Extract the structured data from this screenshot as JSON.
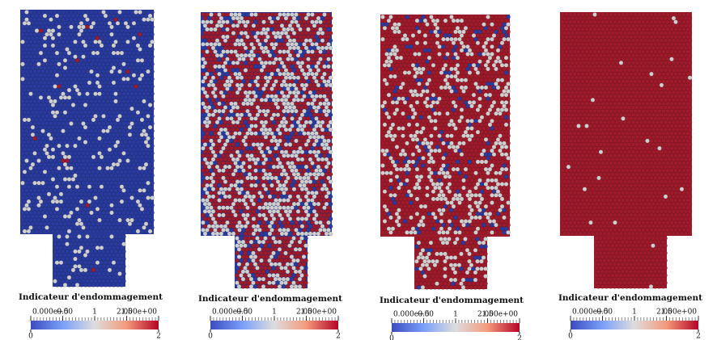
{
  "panels": [
    {
      "colorbar": {
        "title": "Indicateur d'endommagement",
        "ticks": [
          {
            "value": 0,
            "label": "0.000e+00"
          },
          0.5,
          1,
          1.5,
          {
            "value": 2,
            "label": "2.000e+00"
          }
        ],
        "min": 0,
        "max": 2
      }
    },
    {
      "colorbar": {
        "title": "Indicateur d'endommagement",
        "ticks": [
          {
            "value": 0,
            "label": "0.000e+00"
          },
          0.5,
          1,
          1.5,
          {
            "value": 2,
            "label": "2.000e+00"
          }
        ],
        "min": 0,
        "max": 2
      }
    },
    {
      "colorbar": {
        "title": "Indicateur d'endommagement",
        "ticks": [
          {
            "value": 0,
            "label": "0.000e+00"
          },
          0.5,
          1,
          1.5,
          {
            "value": 2,
            "label": "2.000e+00"
          }
        ],
        "min": 0,
        "max": 2
      }
    },
    {
      "colorbar": {
        "title": "Indicateur d'endommagement",
        "ticks": [
          {
            "value": 0,
            "label": "0.000e+00"
          },
          0.5,
          1,
          1.5,
          {
            "value": 2,
            "label": "2.000e+00"
          }
        ],
        "min": 0,
        "max": 2
      }
    }
  ]
}
